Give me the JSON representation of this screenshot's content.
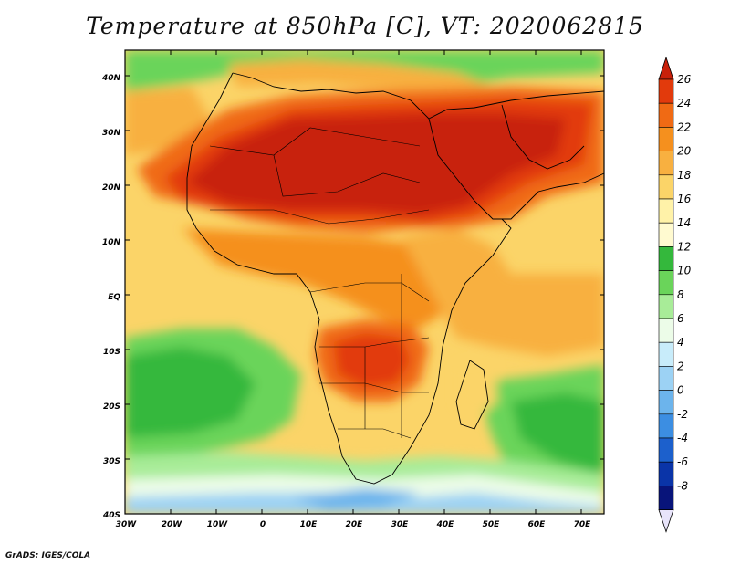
{
  "title": "Temperature at 850hPa [C], VT: 2020062815",
  "credit": "GrADS: IGES/COLA",
  "map": {
    "lat_labels": [
      "40N",
      "30N",
      "20N",
      "10N",
      "EQ",
      "10S",
      "20S",
      "30S",
      "40S"
    ],
    "lon_labels": [
      "30W",
      "20W",
      "10W",
      "0",
      "10E",
      "20E",
      "30E",
      "40E",
      "50E",
      "60E",
      "70E"
    ]
  },
  "colorbar": {
    "levels": [
      "26",
      "24",
      "22",
      "20",
      "18",
      "16",
      "14",
      "12",
      "10",
      "8",
      "6",
      "4",
      "2",
      "0",
      "-2",
      "-4",
      "-6",
      "-8"
    ],
    "colors": [
      "#c8200a",
      "#e23a0c",
      "#f06a14",
      "#f5901e",
      "#f8b040",
      "#fbd468",
      "#fff2a8",
      "#fffad0",
      "#34b83c",
      "#6ad45a",
      "#a8ec98",
      "#ecfce8",
      "#c8ecfa",
      "#9cd2f4",
      "#6cb4ec",
      "#3c8ee2",
      "#1c60cc",
      "#0a34a8",
      "#08147a",
      "#e8e4fa"
    ]
  }
}
